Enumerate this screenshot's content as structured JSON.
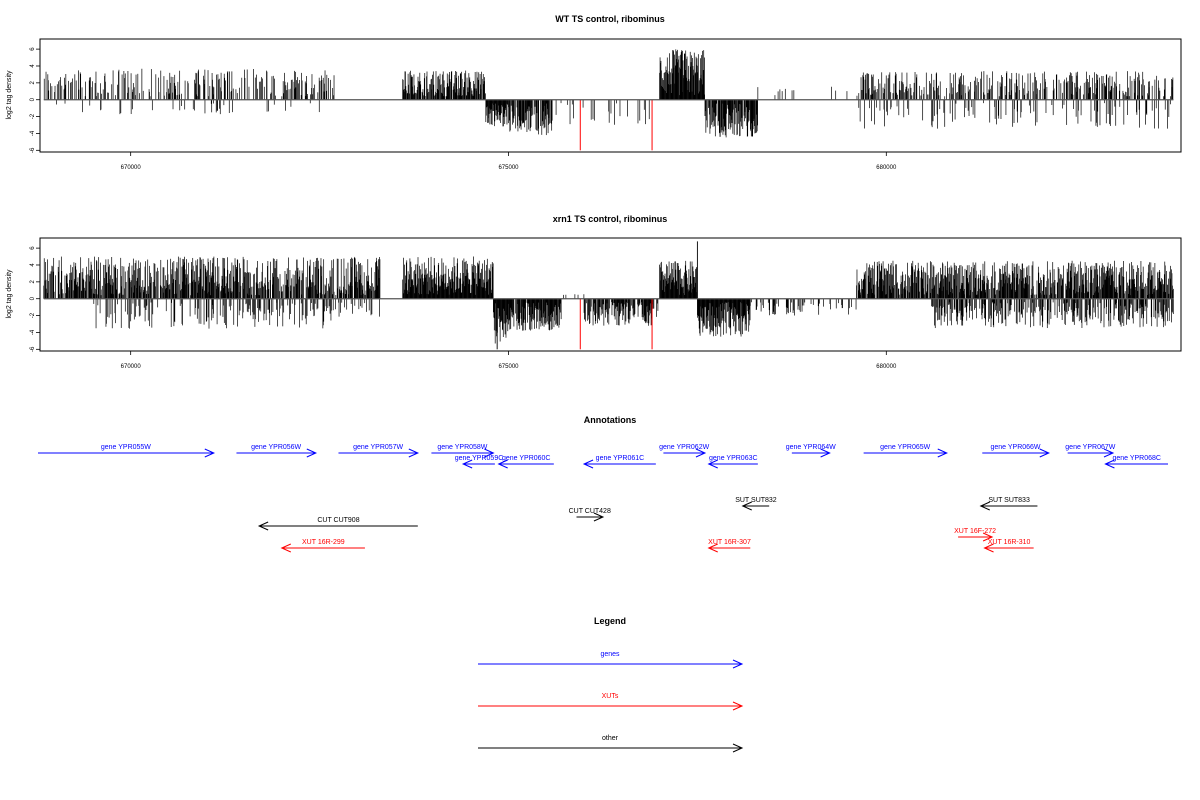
{
  "chart_data": {
    "type": "bar",
    "x_range": [
      668800,
      683900
    ],
    "x_ticks": [
      670000,
      675000,
      680000
    ],
    "x_tick_labels": [
      "670000",
      "675000",
      "680000"
    ],
    "y_range": [
      -6.2,
      7.2
    ],
    "y_ticks": [
      -6,
      -4,
      -2,
      0,
      2,
      4,
      6
    ],
    "ylabel": "log2 tag density",
    "panels": [
      {
        "title": "WT TS control, ribominus",
        "segments": [
          {
            "from": 668850,
            "to": 672700,
            "sign": 1,
            "density": 0.35,
            "max": 3.7
          },
          {
            "from": 669000,
            "to": 672500,
            "sign": -1,
            "density": 0.05,
            "max": 1.8
          },
          {
            "from": 673600,
            "to": 674700,
            "sign": 1,
            "density": 0.8,
            "max": 3.5
          },
          {
            "from": 674700,
            "to": 675000,
            "sign": -1,
            "density": 1.0,
            "max": 3.2
          },
          {
            "from": 675000,
            "to": 675600,
            "sign": -1,
            "density": 0.7,
            "max": 4.2
          },
          {
            "from": 675600,
            "to": 677000,
            "sign": -1,
            "density": 0.08,
            "max": 3.0
          },
          {
            "from": 677000,
            "to": 677600,
            "sign": 1,
            "density": 1.0,
            "max": 6.0
          },
          {
            "from": 677600,
            "to": 678300,
            "sign": -1,
            "density": 0.9,
            "max": 4.5
          },
          {
            "from": 678300,
            "to": 679600,
            "sign": 1,
            "density": 0.05,
            "max": 1.8
          },
          {
            "from": 679600,
            "to": 683800,
            "sign": 1,
            "density": 0.4,
            "max": 3.4
          },
          {
            "from": 679600,
            "to": 683800,
            "sign": -1,
            "density": 0.12,
            "max": 3.5
          }
        ],
        "highlights": [
          {
            "x": 675950,
            "value": -6
          },
          {
            "x": 676900,
            "value": -6
          }
        ],
        "peaks": [
          {
            "x": 677300,
            "value": 5.8
          },
          {
            "x": 677800,
            "value": -4.4
          }
        ]
      },
      {
        "title": "xrn1 TS control, ribominus",
        "segments": [
          {
            "from": 668850,
            "to": 673300,
            "sign": 1,
            "density": 0.75,
            "max": 5.0
          },
          {
            "from": 669500,
            "to": 673300,
            "sign": -1,
            "density": 0.25,
            "max": 3.6
          },
          {
            "from": 673600,
            "to": 674800,
            "sign": 1,
            "density": 1.0,
            "max": 5.0
          },
          {
            "from": 674800,
            "to": 675000,
            "sign": -1,
            "density": 1.0,
            "max": 5.6
          },
          {
            "from": 675000,
            "to": 675700,
            "sign": -1,
            "density": 0.9,
            "max": 3.8
          },
          {
            "from": 675700,
            "to": 676000,
            "sign": 1,
            "density": 0.2,
            "max": 0.6
          },
          {
            "from": 676000,
            "to": 676900,
            "sign": -1,
            "density": 0.8,
            "max": 3.2
          },
          {
            "from": 676900,
            "to": 677000,
            "sign": -1,
            "density": 0.6,
            "max": 2.5
          },
          {
            "from": 677000,
            "to": 677500,
            "sign": 1,
            "density": 1.0,
            "max": 4.5
          },
          {
            "from": 677500,
            "to": 678200,
            "sign": -1,
            "density": 1.0,
            "max": 4.5
          },
          {
            "from": 678200,
            "to": 679600,
            "sign": -1,
            "density": 0.2,
            "max": 2.0
          },
          {
            "from": 679600,
            "to": 683800,
            "sign": 1,
            "density": 0.8,
            "max": 4.5
          },
          {
            "from": 680600,
            "to": 683800,
            "sign": -1,
            "density": 0.5,
            "max": 3.5
          }
        ],
        "highlights": [
          {
            "x": 675950,
            "value": -6
          },
          {
            "x": 676900,
            "value": -6
          }
        ],
        "peaks": [
          {
            "x": 677500,
            "value": 6.8
          },
          {
            "x": 674850,
            "value": -6
          }
        ]
      }
    ],
    "annotations": {
      "title": "Annotations",
      "features": [
        {
          "label": "gene YPR055W",
          "kind": "gene",
          "strand": "+",
          "start": 668300,
          "end": 671100,
          "row": 1
        },
        {
          "label": "gene YPR056W",
          "kind": "gene",
          "strand": "+",
          "start": 671400,
          "end": 672450,
          "row": 1
        },
        {
          "label": "gene YPR057W",
          "kind": "gene",
          "strand": "+",
          "start": 672750,
          "end": 673800,
          "row": 1
        },
        {
          "label": "gene YPR058W",
          "kind": "gene",
          "strand": "+",
          "start": 673980,
          "end": 674800,
          "row": 1
        },
        {
          "label": "gene YPR059C",
          "kind": "gene",
          "strand": "-",
          "start": 674400,
          "end": 674820,
          "row": 2
        },
        {
          "label": "gene YPR060C",
          "kind": "gene",
          "strand": "-",
          "start": 674870,
          "end": 675600,
          "row": 2
        },
        {
          "label": "gene YPR061C",
          "kind": "gene",
          "strand": "-",
          "start": 676000,
          "end": 676950,
          "row": 2
        },
        {
          "label": "gene YPR062W",
          "kind": "gene",
          "strand": "+",
          "start": 677050,
          "end": 677600,
          "row": 1
        },
        {
          "label": "gene YPR063C",
          "kind": "gene",
          "strand": "-",
          "start": 677650,
          "end": 678300,
          "row": 2
        },
        {
          "label": "gene YPR064W",
          "kind": "gene",
          "strand": "+",
          "start": 678750,
          "end": 679250,
          "row": 1
        },
        {
          "label": "gene YPR065W",
          "kind": "gene",
          "strand": "+",
          "start": 679700,
          "end": 680800,
          "row": 1
        },
        {
          "label": "gene YPR066W",
          "kind": "gene",
          "strand": "+",
          "start": 681270,
          "end": 682150,
          "row": 1
        },
        {
          "label": "gene YPR067W",
          "kind": "gene",
          "strand": "+",
          "start": 682400,
          "end": 683000,
          "row": 1
        },
        {
          "label": "gene YPR068C",
          "kind": "gene",
          "strand": "-",
          "start": 682900,
          "end": 684500,
          "row": 2
        },
        {
          "label": "SUT SUT832",
          "kind": "other",
          "strand": "-",
          "start": 678100,
          "end": 678450,
          "row": 3
        },
        {
          "label": "SUT SUT833",
          "kind": "other",
          "strand": "-",
          "start": 681250,
          "end": 682000,
          "row": 3
        },
        {
          "label": "CUT CUT428",
          "kind": "other",
          "strand": "+",
          "start": 675900,
          "end": 676250,
          "row": 4
        },
        {
          "label": "CUT CUT908",
          "kind": "other",
          "strand": "-",
          "start": 671700,
          "end": 673800,
          "row": 5
        },
        {
          "label": "XUT 16F-272",
          "kind": "xut",
          "strand": "+",
          "start": 680950,
          "end": 681400,
          "row": 6
        },
        {
          "label": "XUT 16R-299",
          "kind": "xut",
          "strand": "-",
          "start": 672000,
          "end": 673100,
          "row": 7
        },
        {
          "label": "XUT 16R-307",
          "kind": "xut",
          "strand": "-",
          "start": 677650,
          "end": 678200,
          "row": 7
        },
        {
          "label": "XUT 16R-310",
          "kind": "xut",
          "strand": "-",
          "start": 681300,
          "end": 681950,
          "row": 7
        }
      ]
    },
    "legend": {
      "title": "Legend",
      "items": [
        {
          "label": "genes",
          "kind": "gene"
        },
        {
          "label": "XUTs",
          "kind": "xut"
        },
        {
          "label": "other",
          "kind": "other"
        }
      ]
    }
  },
  "colors": {
    "gene": "#0000ff",
    "xut": "#ff0000",
    "other": "#000000",
    "axis": "#000000",
    "baseline": "#555555",
    "highlight": "#ff0000"
  }
}
